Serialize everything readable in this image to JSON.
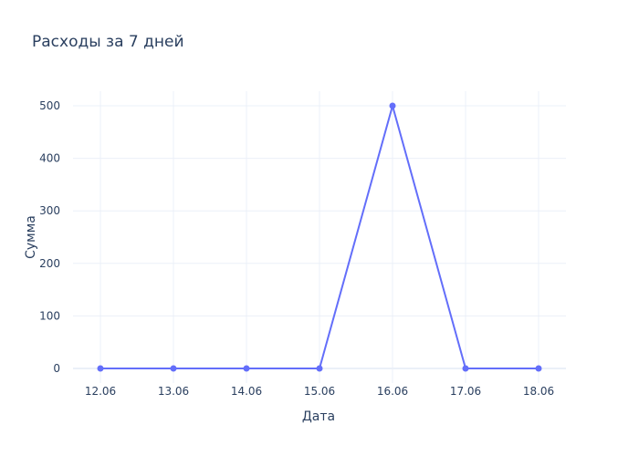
{
  "chart_data": {
    "type": "line",
    "title": "Расходы за 7 дней",
    "xlabel": "Дата",
    "ylabel": "Сумма",
    "categories": [
      "12.06",
      "13.06",
      "14.06",
      "15.06",
      "16.06",
      "17.06",
      "18.06"
    ],
    "series": [
      {
        "values": [
          0,
          0,
          0,
          0,
          500,
          0,
          0
        ],
        "color": "#636efa"
      }
    ],
    "yticks": [
      0,
      100,
      200,
      300,
      400,
      500
    ],
    "ylim": [
      -27.8,
      527.8
    ],
    "grid": true,
    "legend": "none"
  }
}
